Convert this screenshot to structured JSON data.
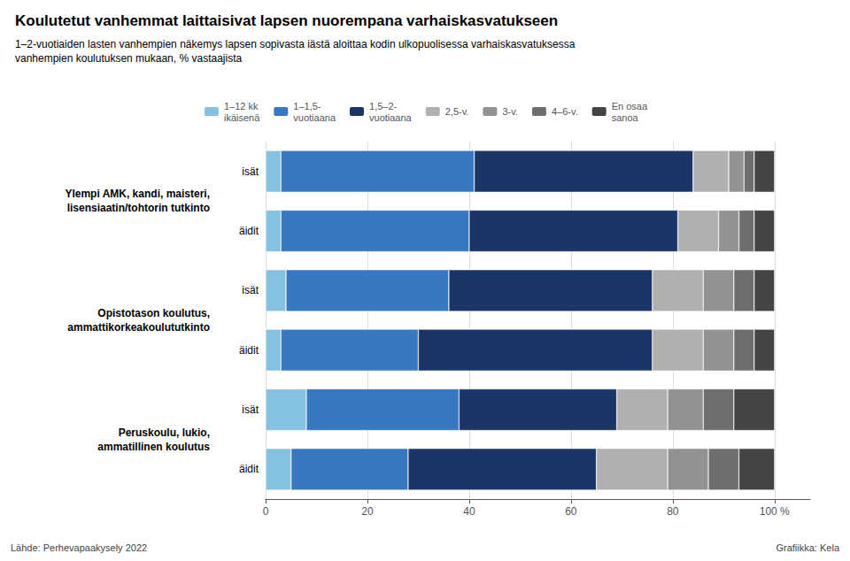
{
  "chart_data": {
    "type": "bar",
    "orientation": "horizontal",
    "stacked": true,
    "grid": true,
    "legend": "top",
    "title": "Koulutetut vanhemmat laittaisivat lapsen nuorempana varhaiskasvatukseen",
    "subtitle": "1–2-vuotiaiden lasten vanhempien näkemys lapsen sopivasta iästä aloittaa kodin ulkopuolisessa varhaiskasvatuksessa\nvanhempien koulutuksen mukaan, % vastaajista",
    "annotations": [
      "Lähde: Perhevapaakysely 2022",
      "Grafiikka: Kela"
    ],
    "categories": [
      "isät",
      "äidit",
      "isät",
      "äidit",
      "isät",
      "äidit"
    ],
    "groups": [
      "Ylempi AMK, kandi, maisteri,\nlisensiaatin/tohtorin tutkinto",
      "Opistotason koulutus,\nammattikorkeakoulututkinto",
      "Peruskoulu, lukio,\nammatillinen koulutus"
    ],
    "series": [
      {
        "name": "1–12 kk\nikäisenä",
        "color": "#85c1e0",
        "values": [
          3,
          3,
          4,
          3,
          8,
          5
        ]
      },
      {
        "name": "1–1,5-\nvuotiaana",
        "color": "#3878c0",
        "values": [
          38,
          37,
          32,
          27,
          30,
          23
        ]
      },
      {
        "name": "1,5–2-\nvuotiaana",
        "color": "#1a3566",
        "values": [
          43,
          41,
          40,
          46,
          31,
          37
        ]
      },
      {
        "name": "2,5-v.",
        "color": "#b0b0b0",
        "values": [
          7,
          8,
          10,
          10,
          10,
          14
        ]
      },
      {
        "name": "3-v.",
        "color": "#929292",
        "values": [
          3,
          4,
          6,
          6,
          7,
          8
        ]
      },
      {
        "name": "4–6-v.",
        "color": "#6e6e6e",
        "values": [
          2,
          3,
          4,
          4,
          6,
          6
        ]
      },
      {
        "name": "En osaa\nsanoa",
        "color": "#444444",
        "values": [
          4,
          4,
          4,
          4,
          8,
          7
        ]
      }
    ],
    "xlim": [
      0,
      107
    ],
    "xticks": [
      0,
      20,
      40,
      60,
      80,
      {
        "value": 100,
        "label": "100 %"
      }
    ]
  }
}
